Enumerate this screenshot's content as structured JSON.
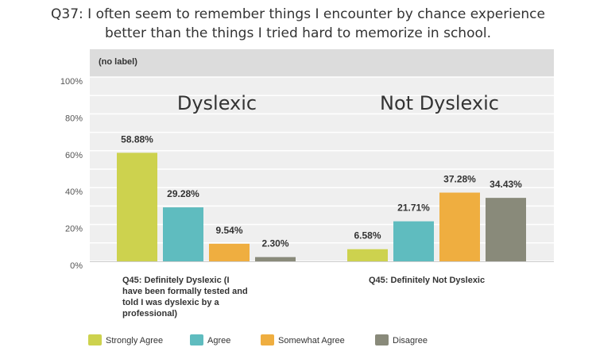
{
  "title_lines": [
    "Q37: I often seem to remember things I encounter by chance experience",
    "better than the things I tried hard to memorize in school."
  ],
  "chart_data": {
    "type": "bar",
    "panel_label": "(no label)",
    "categories": [
      "Q45: Definitely Dyslexic (I have been formally tested and told I was dyslexic by a professional)",
      "Q45: Definitely Not Dyslexic"
    ],
    "category_lines": [
      [
        "Q45: Definitely Dyslexic (I",
        "have been formally tested and",
        "told I was dyslexic by a",
        "professional)"
      ],
      [
        "Q45: Definitely Not Dyslexic"
      ]
    ],
    "annotations": [
      "Dyslexic",
      "Not Dyslexic"
    ],
    "series": [
      {
        "name": "Strongly Agree",
        "color": "#cdd24e",
        "values": [
          58.88,
          6.58
        ]
      },
      {
        "name": "Agree",
        "color": "#5fbcbf",
        "values": [
          29.28,
          21.71
        ]
      },
      {
        "name": "Somewhat Agree",
        "color": "#efae40",
        "values": [
          9.54,
          37.28
        ]
      },
      {
        "name": "Disagree",
        "color": "#898a7a",
        "values": [
          2.3,
          34.43
        ]
      }
    ],
    "value_labels": [
      [
        "58.88%",
        "6.58%"
      ],
      [
        "29.28%",
        "21.71%"
      ],
      [
        "9.54%",
        "37.28%"
      ],
      [
        "2.30%",
        "34.43%"
      ]
    ],
    "yticks": [
      "0%",
      "20%",
      "40%",
      "60%",
      "80%",
      "100%"
    ],
    "ylim": [
      0,
      100
    ],
    "grid": true,
    "legend": "bottom"
  }
}
